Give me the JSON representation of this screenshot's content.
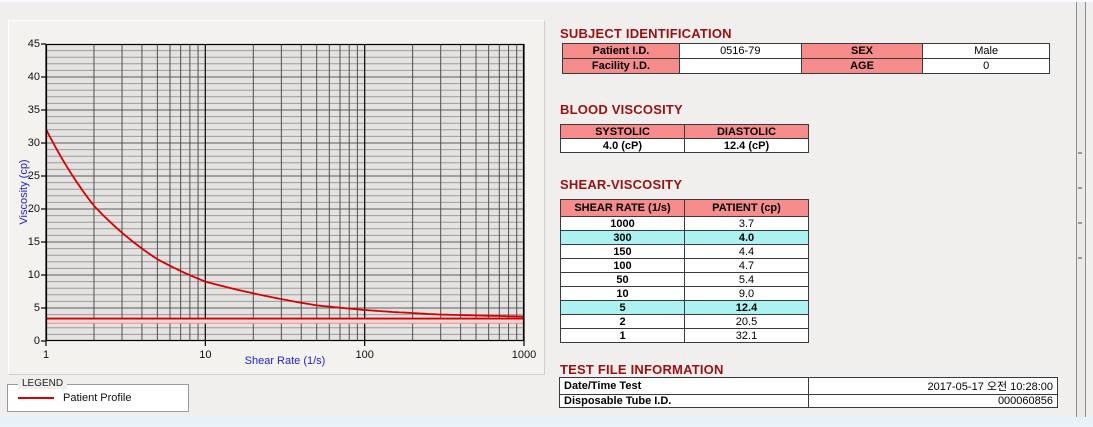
{
  "colors": {
    "heading_red": "#9b1111",
    "table_header_salmon": "#f78c8c",
    "highlight_cyan": "#acf2f2",
    "curve_red": "#d80000",
    "axis_blue": "#2222cc",
    "plot_bg": "#e4e3e1",
    "page_bg": "#f0efed"
  },
  "chart": {
    "y_axis_title": "Viscosity (cp)",
    "x_axis_title": "Shear Rate (1/s)",
    "legend_title": "LEGEND",
    "legend_items": [
      {
        "label": "Patient Profile",
        "color": "#d80000"
      }
    ]
  },
  "chart_data": {
    "type": "line",
    "x_scale": "log",
    "xlim": [
      1,
      1000
    ],
    "ylim": [
      0,
      45
    ],
    "x_ticks": [
      1,
      10,
      100,
      1000
    ],
    "y_ticks": [
      0,
      5,
      10,
      15,
      20,
      25,
      30,
      35,
      40,
      45
    ],
    "xlabel": "Shear Rate (1/s)",
    "ylabel": "Viscosity (cp)",
    "grid": true,
    "legend_position": "bottom-left",
    "series": [
      {
        "name": "Patient Profile",
        "color": "#d80000",
        "points": [
          [
            1,
            32.1
          ],
          [
            2,
            20.5
          ],
          [
            5,
            12.4
          ],
          [
            10,
            9.0
          ],
          [
            50,
            5.4
          ],
          [
            100,
            4.7
          ],
          [
            150,
            4.4
          ],
          [
            300,
            4.0
          ],
          [
            1000,
            3.7
          ]
        ]
      }
    ],
    "reference_band": {
      "top": 3.4,
      "bottom": 2.7,
      "fill": "#f6d9d9",
      "top_color": "#d40000",
      "bottom_color": "#ef9090"
    }
  },
  "sections": {
    "subject": {
      "heading": "SUBJECT IDENTIFICATION",
      "rows": [
        [
          "Patient I.D.",
          "0516-79",
          "SEX",
          "Male"
        ],
        [
          "Facility I.D.",
          "",
          "AGE",
          "0"
        ]
      ]
    },
    "blood": {
      "heading": "BLOOD VISCOSITY",
      "headers": [
        "SYSTOLIC",
        "DIASTOLIC"
      ],
      "values": [
        "4.0 (cP)",
        "12.4 (cP)"
      ]
    },
    "shear": {
      "heading": "SHEAR-VISCOSITY",
      "headers": [
        "SHEAR RATE (1/s)",
        "PATIENT (cp)"
      ],
      "rows": [
        {
          "rate": "1000",
          "value": "3.7",
          "highlight": false
        },
        {
          "rate": "300",
          "value": "4.0",
          "highlight": true
        },
        {
          "rate": "150",
          "value": "4.4",
          "highlight": false
        },
        {
          "rate": "100",
          "value": "4.7",
          "highlight": false
        },
        {
          "rate": "50",
          "value": "5.4",
          "highlight": false
        },
        {
          "rate": "10",
          "value": "9.0",
          "highlight": false
        },
        {
          "rate": "5",
          "value": "12.4",
          "highlight": true
        },
        {
          "rate": "2",
          "value": "20.5",
          "highlight": false
        },
        {
          "rate": "1",
          "value": "32.1",
          "highlight": false
        }
      ]
    },
    "test": {
      "heading": "TEST FILE INFORMATION",
      "rows": [
        {
          "label": "Date/Time Test",
          "value": "2017-05-17  오전 10:28:00"
        },
        {
          "label": "Disposable Tube I.D.",
          "value": "000060856"
        }
      ]
    }
  }
}
